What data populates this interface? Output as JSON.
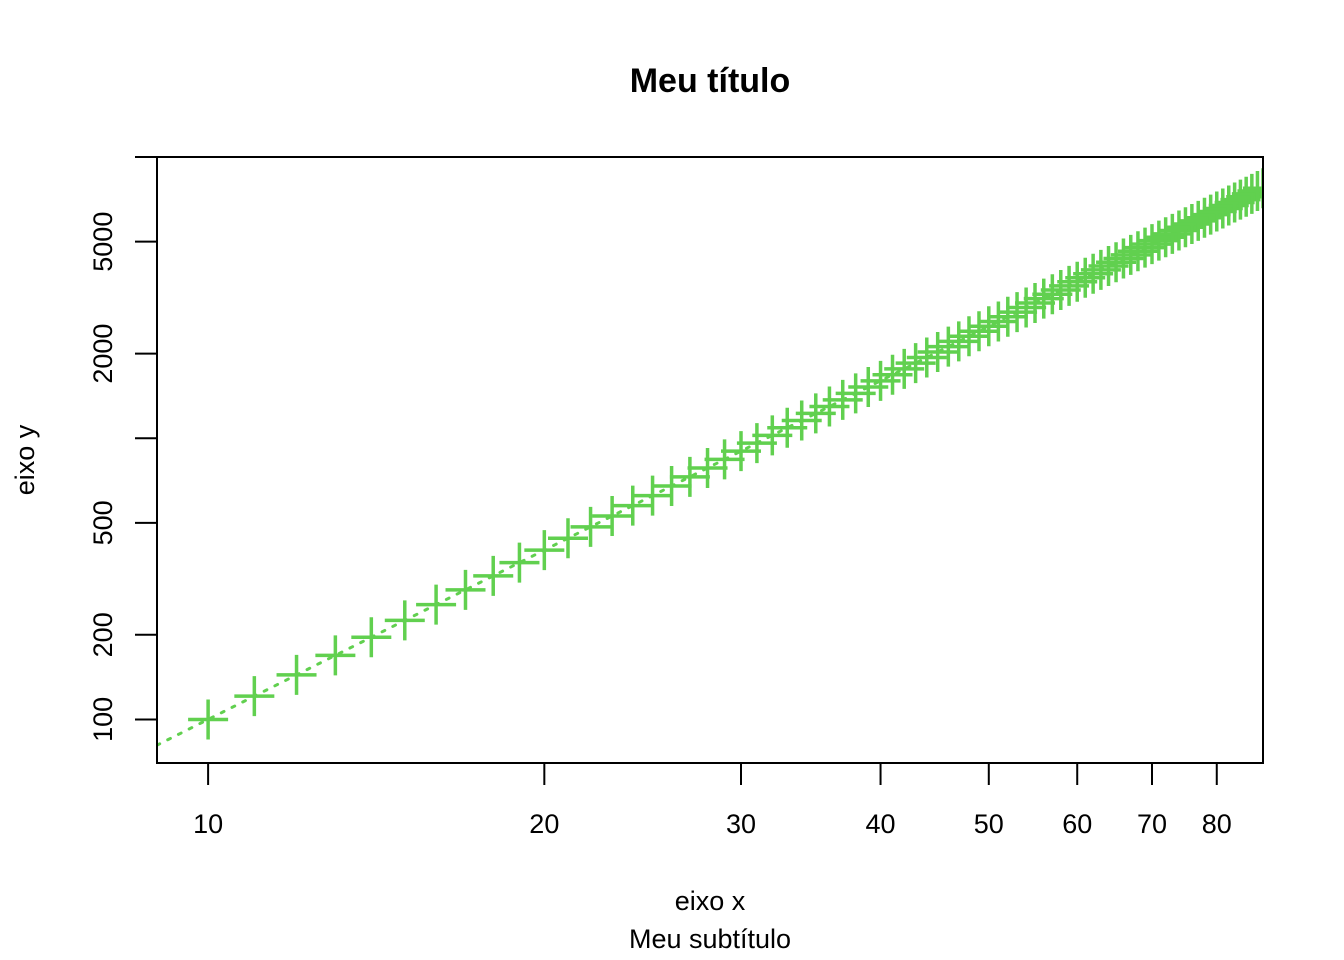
{
  "chart_data": {
    "type": "scatter",
    "title": "Meu título",
    "subtitle": "Meu subtítulo",
    "xlabel": "eixo x",
    "ylabel": "eixo y",
    "x_scale": "log",
    "y_scale": "log",
    "xlim": [
      9,
      88
    ],
    "ylim": [
      70,
      10000
    ],
    "x_ticks": [
      10,
      20,
      30,
      40,
      50,
      60,
      70,
      80
    ],
    "x_tick_labels": [
      "10",
      "20",
      "30",
      "40",
      "50",
      "60",
      "70",
      "80"
    ],
    "y_ticks": [
      100,
      200,
      500,
      1000,
      2000,
      5000,
      10000
    ],
    "y_tick_labels": [
      "100",
      "200",
      "500",
      "",
      "2000",
      "5000",
      ""
    ],
    "grid": false,
    "legend": "none",
    "marker": "cross",
    "color": "#61D04F",
    "trend_line": {
      "style": "dotted",
      "color": "#61D04F",
      "relation": "y = x^2"
    },
    "series": [
      {
        "x": [
          10,
          11,
          12,
          13,
          14,
          15,
          16,
          17,
          18,
          19,
          20,
          21,
          22,
          23,
          24,
          25,
          26,
          27,
          28,
          29,
          30,
          31,
          32,
          33,
          34,
          35,
          36,
          37,
          38,
          39,
          40,
          41,
          42,
          43,
          44,
          45,
          46,
          47,
          48,
          49,
          50,
          51,
          52,
          53,
          54,
          55,
          56,
          57,
          58,
          59,
          60,
          61,
          62,
          63,
          64,
          65,
          66,
          67,
          68,
          69,
          70,
          71,
          72,
          73,
          74,
          75,
          76,
          77,
          78,
          79,
          80,
          81,
          82,
          83,
          84,
          85,
          86,
          87,
          88
        ],
        "y": [
          100,
          121,
          144,
          169,
          196,
          225,
          256,
          289,
          324,
          361,
          400,
          441,
          484,
          529,
          576,
          625,
          676,
          729,
          784,
          841,
          900,
          961,
          1024,
          1089,
          1156,
          1225,
          1296,
          1369,
          1444,
          1521,
          1600,
          1681,
          1764,
          1849,
          1936,
          2025,
          2116,
          2209,
          2304,
          2401,
          2500,
          2601,
          2704,
          2809,
          2916,
          3025,
          3136,
          3249,
          3364,
          3481,
          3600,
          3721,
          3844,
          3969,
          4096,
          4225,
          4356,
          4489,
          4624,
          4761,
          4900,
          5041,
          5184,
          5329,
          5476,
          5625,
          5776,
          5929,
          6084,
          6241,
          6400,
          6561,
          6724,
          6889,
          7056,
          7225,
          7396,
          7569,
          7744
        ]
      }
    ]
  }
}
